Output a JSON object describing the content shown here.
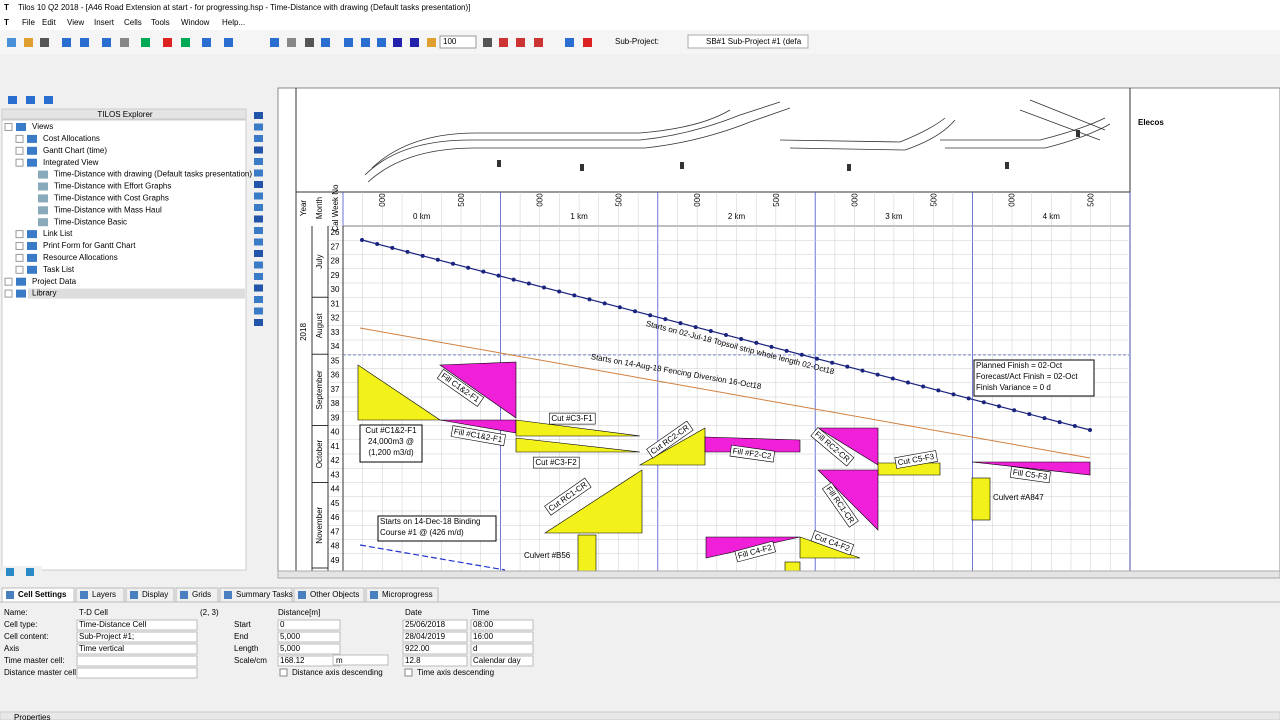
{
  "window": {
    "title": "Tilos 10 Q2 2018 - [A46 Road Extension at start - for progressing.hsp - Time-Distance with drawing (Default tasks presentation)]",
    "menu": [
      "File",
      "Edit",
      "View",
      "Insert",
      "Cells",
      "Tools",
      "Window",
      "Help..."
    ],
    "zoom": "100",
    "subproject_label": "Sub-Project:",
    "subproject": "SB#1 Sub-Project #1 (defa"
  },
  "explorer": {
    "title": "TILOS Explorer",
    "tree": [
      {
        "label": "Views",
        "children": [
          {
            "label": "Cost Allocations"
          },
          {
            "label": "Gantt Chart (time)"
          },
          {
            "label": "Integrated View",
            "children": [
              {
                "label": "Time-Distance with drawing (Default tasks presentation)"
              },
              {
                "label": "Time-Distance with Effort Graphs"
              },
              {
                "label": "Time-Distance with Cost Graphs"
              },
              {
                "label": "Time-Distance with Mass Haul"
              },
              {
                "label": "Time-Distance Basic"
              }
            ]
          },
          {
            "label": "Link List"
          },
          {
            "label": "Print Form for Gantt Chart"
          },
          {
            "label": "Resource Allocations"
          },
          {
            "label": "Task List"
          }
        ]
      },
      {
        "label": "Project Data"
      },
      {
        "label": "Library"
      }
    ]
  },
  "chart": {
    "logo": "Elecos",
    "year_header": "Year",
    "month_header": "Month",
    "week_header": "Cal Week No",
    "year": "2018",
    "km_labels": [
      "0 km",
      "1 km",
      "2 km",
      "3 km",
      "4 km"
    ],
    "sub_ticks": [
      "000",
      "500"
    ],
    "months": [
      "July",
      "August",
      "September",
      "October",
      "November"
    ],
    "weeks": [
      26,
      27,
      28,
      29,
      30,
      31,
      32,
      33,
      34,
      35,
      36,
      37,
      38,
      39,
      40,
      41,
      42,
      43,
      44,
      45,
      46,
      47,
      48,
      49
    ],
    "tasks": [
      "Fill C1&2-F1",
      "Fill #C1&2-F1",
      "Cut #C3-F1",
      "Cut #C3-F2",
      "Cut RC2-CR",
      "Fill #F2-C2",
      "Fill RC2-CR",
      "Cut C5-F3",
      "Fill RC1-CR",
      "Fill C5-F3",
      "Cut RC1-CR",
      "Fill C4-F2",
      "Cut C4-F2"
    ],
    "culverts": [
      "Culvert #A847",
      "Culvert #B56"
    ],
    "line_labels": [
      "Starts on 02-Jul-18 Topsoil strip whole length 02-Oct18",
      "Starts on 14-Aug-18 Fencing Diversion 16-Oct18"
    ],
    "boxes": [
      [
        "Cut #C1&2-F1",
        "24,000m3 @",
        "(1,200 m3/d)"
      ],
      [
        "Starts on 14-Dec-18 Binding",
        "Course #1 @ (426 m/d)"
      ],
      [
        "Planned Finish = 02-Oct",
        "Forecast/Act Finish = 02-Oct",
        "Finish Variance = 0 d"
      ]
    ]
  },
  "panel": {
    "tabs": [
      "Cell Settings",
      "Layers",
      "Display",
      "Grids",
      "Summary Tasks",
      "Other Objects",
      "Microprogress"
    ],
    "fields": [
      [
        "Name:",
        "T-D Cell"
      ],
      [
        "Cell type:",
        "Time-Distance Cell"
      ],
      [
        "Cell content:",
        "Sub-Project #1;"
      ],
      [
        "Axis",
        "Time vertical"
      ],
      [
        "Time master cell:",
        ""
      ],
      [
        "Distance master cell:",
        ""
      ]
    ],
    "cell_pos": "(2, 3)",
    "distance_header": "Distance[m]",
    "date_header": "Date",
    "time_header": "Time",
    "rows": [
      [
        "Start",
        "0",
        "25/06/2018",
        "08:00"
      ],
      [
        "End",
        "5,000",
        "28/04/2019",
        "16:00"
      ],
      [
        "Length",
        "5,000",
        "922.00",
        "d"
      ],
      [
        "Scale/cm",
        "168.12",
        "12.8",
        "Calendar day"
      ]
    ],
    "scale_unit": "m",
    "distance_desc": "Distance axis descending",
    "time_desc": "Time axis descending",
    "status": "Properties"
  }
}
